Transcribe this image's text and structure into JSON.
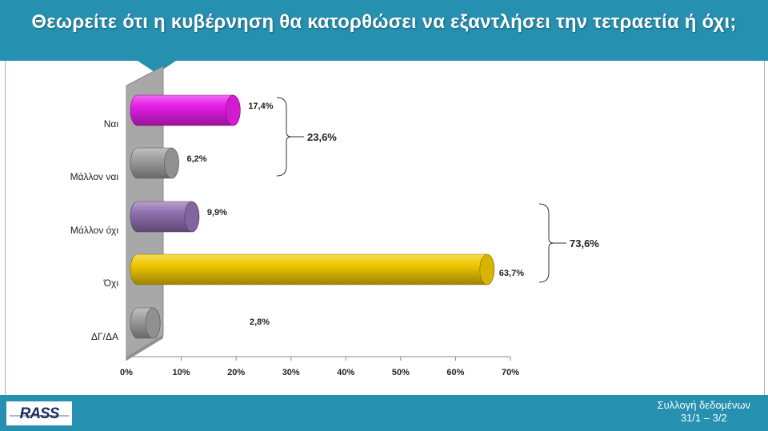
{
  "header": {
    "title": "Θεωρείτε ότι η κυβέρνηση θα κατορθώσει να εξαντλήσει την τετραετία ή όχι;"
  },
  "footer": {
    "logo_text": "RASS",
    "collection_label": "Συλλογή δεδομένων",
    "collection_dates": "31/1 – 3/2"
  },
  "chart_data": {
    "type": "bar",
    "orientation": "horizontal",
    "categories": [
      "Ναι",
      "Μάλλον ναι",
      "Μάλλον όχι",
      "Όχι",
      "ΔΓ/ΔΑ"
    ],
    "values": [
      17.4,
      6.2,
      9.9,
      63.7,
      2.8
    ],
    "value_labels": [
      "17,4%",
      "6,2%",
      "9,9%",
      "63,7%",
      "2,8%"
    ],
    "colors": [
      "#e81ee8",
      "#a0a0a0",
      "#9070b0",
      "#f0c800",
      "#a0a0a0"
    ],
    "xlim": [
      0,
      70
    ],
    "x_ticks": [
      "0%",
      "10%",
      "20%",
      "30%",
      "40%",
      "50%",
      "60%",
      "70%"
    ],
    "groups": [
      {
        "label": "23,6%",
        "value": 23.6,
        "from": 0,
        "to": 1
      },
      {
        "label": "73,6%",
        "value": 73.6,
        "from": 2,
        "to": 3
      }
    ],
    "grid": false,
    "legend": "none"
  }
}
